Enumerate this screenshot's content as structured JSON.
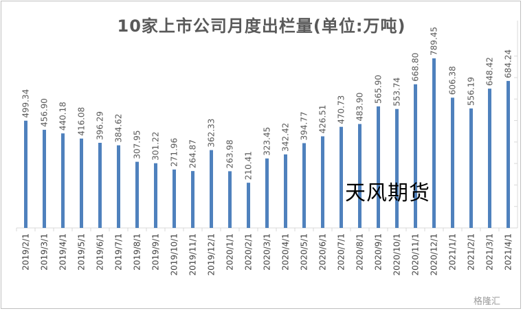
{
  "chart_data": {
    "type": "bar",
    "title": "10家上市公司月度出栏量(单位:万吨)",
    "categories": [
      "2019/2/1",
      "2019/3/1",
      "2019/4/1",
      "2019/5/1",
      "2019/6/1",
      "2019/7/1",
      "2019/8/1",
      "2019/9/1",
      "2019/10/1",
      "2019/11/1",
      "2019/12/1",
      "2020/1/1",
      "2020/2/1",
      "2020/3/1",
      "2020/4/1",
      "2020/5/1",
      "2020/6/1",
      "2020/7/1",
      "2020/8/1",
      "2020/9/1",
      "2020/10/1",
      "2020/11/1",
      "2020/12/1",
      "2021/1/1",
      "2021/2/1",
      "2021/3/1",
      "2021/4/1"
    ],
    "values": [
      499.34,
      456.9,
      440.18,
      416.08,
      396.29,
      384.62,
      307.95,
      301.22,
      271.96,
      264.87,
      362.33,
      263.98,
      210.41,
      323.45,
      342.42,
      394.77,
      426.51,
      470.73,
      483.9,
      565.9,
      553.74,
      668.8,
      789.45,
      606.38,
      556.19,
      648.42,
      684.24
    ],
    "value_labels": [
      "499.34",
      "456.90",
      "440.18",
      "416.08",
      "396.29",
      "384.62",
      "307.95",
      "301.22",
      "271.96",
      "264.87",
      "362.33",
      "263.98",
      "210.41",
      "323.45",
      "342.42",
      "394.77",
      "426.51",
      "470.73",
      "483.90",
      "565.90",
      "553.74",
      "668.80",
      "789.45",
      "606.38",
      "556.19",
      "648.42",
      "684.24"
    ],
    "ylim": [
      0,
      800
    ],
    "bar_color": "#4f81bd",
    "grid": false,
    "legend": "none"
  },
  "watermark_text": "天风期货",
  "source_logo": "格隆汇"
}
